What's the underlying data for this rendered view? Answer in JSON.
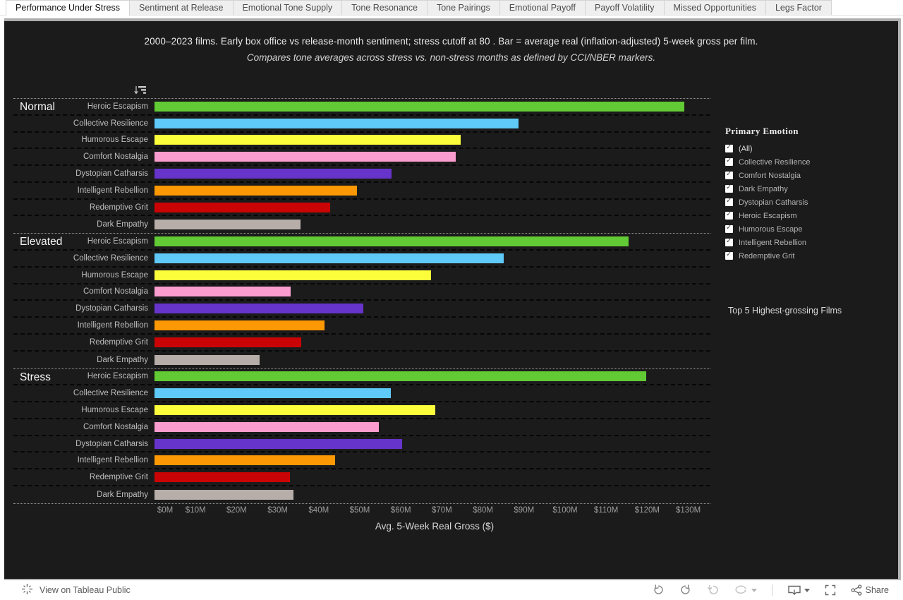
{
  "tabs": {
    "active_index": 0,
    "items": [
      "Performance Under Stress",
      "Sentiment at Release",
      "Emotional Tone Supply",
      "Tone Resonance",
      "Tone Pairings",
      "Emotional Payoff",
      "Payoff Volatility",
      "Missed Opportunities",
      "Legs Factor"
    ]
  },
  "header": {
    "title": "2000–2023 films. Early box office vs release-month sentiment; stress cutoff at 80 . Bar = average real (inflation-adjusted) 5-week gross per film.",
    "subtitle": "Compares tone averages across stress vs. non-stress months as defined by CCI/NBER markers."
  },
  "chart_data": {
    "type": "bar",
    "orientation": "horizontal",
    "xlabel": "Avg. 5-Week Real Gross ($)",
    "x_ticks": [
      "$0M",
      "$10M",
      "$20M",
      "$30M",
      "$40M",
      "$50M",
      "$60M",
      "$70M",
      "$80M",
      "$90M",
      "$100M",
      "$110M",
      "$120M",
      "$130M"
    ],
    "x_range_millions": [
      0,
      135.5
    ],
    "grid": "dashed row separators, dotted group separators",
    "categories": [
      "Heroic Escapism",
      "Collective Resilience",
      "Humorous Escape",
      "Comfort Nostalgia",
      "Dystopian Catharsis",
      "Intelligent Rebellion",
      "Redemptive Grit",
      "Dark Empathy"
    ],
    "colors": [
      "#61ca34",
      "#5fc9f8",
      "#fdfe3b",
      "#fa9dce",
      "#6734cb",
      "#fb9804",
      "#ca0404",
      "#b7aeaa"
    ],
    "value_unit": "millions USD",
    "groups": [
      {
        "name": "Normal",
        "values": [
          129.0,
          88.7,
          74.6,
          73.4,
          57.7,
          49.3,
          42.8,
          35.6
        ]
      },
      {
        "name": "Elevated",
        "values": [
          115.4,
          85.0,
          67.3,
          33.2,
          50.8,
          41.4,
          35.7,
          25.6
        ]
      },
      {
        "name": "Stress",
        "values": [
          119.8,
          57.6,
          68.4,
          54.6,
          60.3,
          44.0,
          32.9,
          33.9
        ]
      }
    ]
  },
  "legend": {
    "title": "Primary  Emotion",
    "all_checked": true,
    "items": [
      "(All)",
      "Collective Resilience",
      "Comfort Nostalgia",
      "Dark Empathy",
      "Dystopian Catharsis",
      "Heroic Escapism",
      "Humorous Escape",
      "Intelligent Rebellion",
      "Redemptive Grit"
    ]
  },
  "side": {
    "top5_title": "Top 5 Highest-grossing Films"
  },
  "toolbar": {
    "view_label": "View on Tableau Public",
    "share_label": "Share"
  },
  "theme": {
    "dashboard_bg": "#1b1b1b",
    "frame_border": "#b0b0b0",
    "row_label_color": "#bfbfbf",
    "tick_color": "#9c9c9c"
  }
}
